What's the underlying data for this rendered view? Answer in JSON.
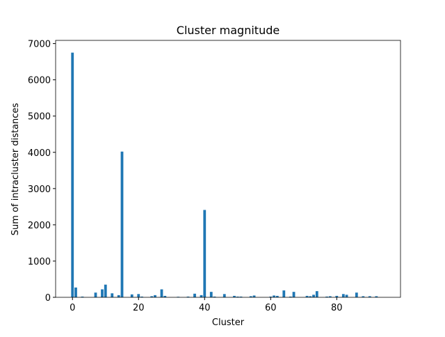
{
  "chart_data": {
    "type": "bar",
    "title": "Cluster magnitude",
    "x_label": "Cluster",
    "y_label": "Sum of intracluster distances",
    "x": [
      0,
      1,
      3,
      7,
      9,
      10,
      12,
      14,
      15,
      18,
      20,
      21,
      24,
      25,
      27,
      28,
      32,
      35,
      37,
      39,
      40,
      42,
      43,
      46,
      49,
      50,
      51,
      54,
      55,
      60,
      61,
      62,
      64,
      66,
      67,
      71,
      72,
      73,
      74,
      77,
      78,
      80,
      82,
      83,
      86,
      88,
      90,
      92
    ],
    "values": [
      6750,
      270,
      20,
      130,
      220,
      350,
      110,
      60,
      4020,
      80,
      90,
      20,
      30,
      60,
      220,
      40,
      15,
      20,
      100,
      60,
      2410,
      150,
      20,
      90,
      40,
      20,
      20,
      30,
      50,
      20,
      50,
      40,
      190,
      20,
      150,
      40,
      30,
      70,
      170,
      20,
      30,
      40,
      90,
      70,
      130,
      30,
      30,
      30
    ],
    "color": "#1f77b4",
    "bar_width": 0.8,
    "xlim": [
      -5.1,
      99.3
    ],
    "xticks": [
      0,
      20,
      40,
      60,
      80
    ],
    "ylim": [
      0,
      7088
    ],
    "yticks": [
      0,
      1000,
      2000,
      3000,
      4000,
      5000,
      6000,
      7000
    ]
  }
}
